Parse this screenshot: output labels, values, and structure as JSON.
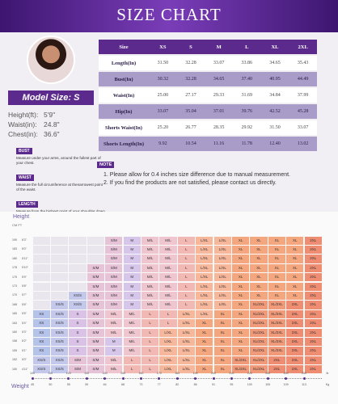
{
  "title": "SIZE CHART",
  "model": {
    "label": "Model Size: S",
    "stats": [
      {
        "k": "Height(ft):",
        "v": "5'9\""
      },
      {
        "k": "Waist(in):",
        "v": "24.8\""
      },
      {
        "k": "Chest(in):",
        "v": "36.6\""
      }
    ]
  },
  "size_table": {
    "header": [
      "Size",
      "XS",
      "S",
      "M",
      "L",
      "XL",
      "2XL"
    ],
    "rows": [
      {
        "label": "Length(In)",
        "values": [
          "31.50",
          "32.28",
          "33.07",
          "33.86",
          "34.65",
          "35.43"
        ],
        "style": "w"
      },
      {
        "label": "Bust(In)",
        "values": [
          "30.32",
          "32.28",
          "34.65",
          "37.40",
          "40.95",
          "44.49"
        ],
        "style": "p"
      },
      {
        "label": "Waist(In)",
        "values": [
          "25.00",
          "27.17",
          "29.33",
          "31.69",
          "34.84",
          "37.99"
        ],
        "style": "w"
      },
      {
        "label": "Hip(In)",
        "values": [
          "33.07",
          "35.04",
          "37.01",
          "39.76",
          "42.52",
          "45.28"
        ],
        "style": "p"
      },
      {
        "label": "Shorts Waist(In)",
        "values": [
          "25.20",
          "26.77",
          "28.35",
          "29.92",
          "31.50",
          "33.07"
        ],
        "style": "w"
      },
      {
        "label": "Shorts Length(In)",
        "values": [
          "9.92",
          "10.54",
          "11.16",
          "11.78",
          "12.40",
          "13.02"
        ],
        "style": "p"
      }
    ]
  },
  "legend": [
    {
      "tag": "BUST",
      "text": "Measure under your arms, around the fullest part of your chest."
    },
    {
      "tag": "WAIST",
      "text": "Measure the full circumference at thenarrowest point of the waist."
    },
    {
      "tag": "LENGTH",
      "text": "Measure from the highest point of your shoulder down to the bottom hemline."
    }
  ],
  "note": {
    "tag": "NOTE",
    "lines": [
      "1. Please allow for 0.4 inches size difference due to manual measurement.",
      "2. If you find the products are not satisfied, please contact us directly."
    ]
  },
  "grid": {
    "height_label": "Height",
    "units": "CM  FT",
    "weight_label": "Weight",
    "heights": [
      [
        "190",
        "6'3\""
      ],
      [
        "183",
        "6'0\""
      ],
      [
        "180",
        "5'11\""
      ],
      [
        "178",
        "5'10\""
      ],
      [
        "175",
        "5'9\""
      ],
      [
        "173",
        "5'8\""
      ],
      [
        "170",
        "5'7\""
      ],
      [
        "168",
        "5'6\""
      ],
      [
        "165",
        "5'5\""
      ],
      [
        "163",
        "5'4\""
      ],
      [
        "160",
        "5'3\""
      ],
      [
        "158",
        "5'2\""
      ],
      [
        "155",
        "5'1\""
      ],
      [
        "152",
        "5'0\""
      ],
      [
        "150",
        "4'11\""
      ]
    ],
    "weights_lb": [
      "100",
      "110",
      "120",
      "130",
      "140",
      "150",
      "160",
      "170",
      "180",
      "190",
      "200",
      "210",
      "220",
      "230",
      "240",
      "250"
    ],
    "weights_kg": [
      "45",
      "50",
      "55",
      "59",
      "64",
      "68",
      "73",
      "77",
      "82",
      "86",
      "91",
      "95",
      "100",
      "105",
      "109",
      "113"
    ],
    "unit_lb": "lb",
    "unit_kg": "Kg",
    "rows": [
      [
        "",
        "",
        "",
        "",
        "S/M",
        "M",
        "M/L",
        "M/L",
        "L",
        "L/XL",
        "L/XL",
        "XL",
        "XL",
        "XL",
        "XL",
        "2XL"
      ],
      [
        "",
        "",
        "",
        "",
        "S/M",
        "M",
        "M/L",
        "M/L",
        "L",
        "L/XL",
        "L/XL",
        "XL",
        "XL",
        "XL",
        "XL",
        "2XL"
      ],
      [
        "",
        "",
        "",
        "",
        "S/M",
        "M",
        "M/L",
        "M/L",
        "L",
        "L/XL",
        "L/XL",
        "XL",
        "XL",
        "XL",
        "XL",
        "2XL"
      ],
      [
        "",
        "",
        "",
        "S/M",
        "S/M",
        "M",
        "M/L",
        "M/L",
        "L",
        "L/XL",
        "L/XL",
        "XL",
        "XL",
        "XL",
        "XL",
        "2XL"
      ],
      [
        "",
        "",
        "",
        "S/M",
        "S/M",
        "M",
        "M/L",
        "M/L",
        "L",
        "L/XL",
        "L/XL",
        "XL",
        "XL",
        "XL",
        "XL",
        "2XL"
      ],
      [
        "",
        "",
        "",
        "S/M",
        "S/M",
        "M",
        "M/L",
        "M/L",
        "L",
        "L/XL",
        "L/XL",
        "XL",
        "XL",
        "XL",
        "XL",
        "2XL"
      ],
      [
        "",
        "",
        "XS/S",
        "S/M",
        "S/M",
        "M",
        "M/L",
        "M/L",
        "L",
        "L/XL",
        "L/XL",
        "XL",
        "XL",
        "XL",
        "XL",
        "2XL"
      ],
      [
        "",
        "XS/S",
        "XS/S",
        "S/M",
        "S/M",
        "M",
        "M/L",
        "M/L",
        "L",
        "L/XL",
        "L/XL",
        "XL",
        "XL/2XL",
        "XL/2XL",
        "2XL",
        "2XL"
      ],
      [
        "XS",
        "XS/S",
        "S",
        "S/M",
        "M/L",
        "M/L",
        "L",
        "L",
        "L/XL",
        "L/XL",
        "XL",
        "XL",
        "XL/2XL",
        "XL/2XL",
        "2XL",
        "2XL"
      ],
      [
        "XS",
        "XS/S",
        "S",
        "S/M",
        "M/L",
        "M/L",
        "L",
        "L",
        "L/XL",
        "XL",
        "XL",
        "XL",
        "XL/2XL",
        "XL/2XL",
        "2XL",
        "2XL"
      ],
      [
        "XS",
        "XS/S",
        "S",
        "S/M",
        "M/L",
        "M/L",
        "L",
        "L/XL",
        "L/XL",
        "XL",
        "XL",
        "XL",
        "XL/2XL",
        "XL/2XL",
        "2XL",
        "2XL"
      ],
      [
        "XS",
        "XS/S",
        "S",
        "S/M",
        "M",
        "M/L",
        "L",
        "L/XL",
        "L/XL",
        "XL",
        "XL",
        "XL",
        "XL/2XL",
        "XL/2XL",
        "2XL",
        "2XL"
      ],
      [
        "XS",
        "XS/S",
        "S",
        "S/M",
        "M",
        "M/L",
        "L",
        "L/XL",
        "L/XL",
        "XL",
        "XL",
        "XL",
        "XL/2XL",
        "XL/2XL",
        "2XL",
        "2XL"
      ],
      [
        "XS/S",
        "XS/S",
        "S/M",
        "S/M",
        "M/L",
        "L",
        "L",
        "L/XL",
        "L/XL",
        "XL",
        "XL",
        "XL/2XL",
        "XL/2XL",
        "2XL",
        "2XL",
        "2XL"
      ],
      [
        "XS/S",
        "XS/S",
        "S/M",
        "S/M",
        "M/L",
        "L",
        "L",
        "L/XL",
        "L/XL",
        "XL",
        "XL",
        "XL/2XL",
        "XL/2XL",
        "2XL",
        "2XL",
        "2XL"
      ]
    ],
    "colors": {
      "XS": "#b5c2ea",
      "XS/S": "#c4c9ec",
      "S": "#d9c2e6",
      "S/M": "#e7c3d8",
      "M": "#d6c6ea",
      "M/L": "#efc6cf",
      "L": "#f2b9b4",
      "L/XL": "#f7b79b",
      "XL": "#f4a77f",
      "XL/2XL": "#f19a7a",
      "2XL": "#ee8d72",
      "": "#e9e6ee"
    }
  }
}
